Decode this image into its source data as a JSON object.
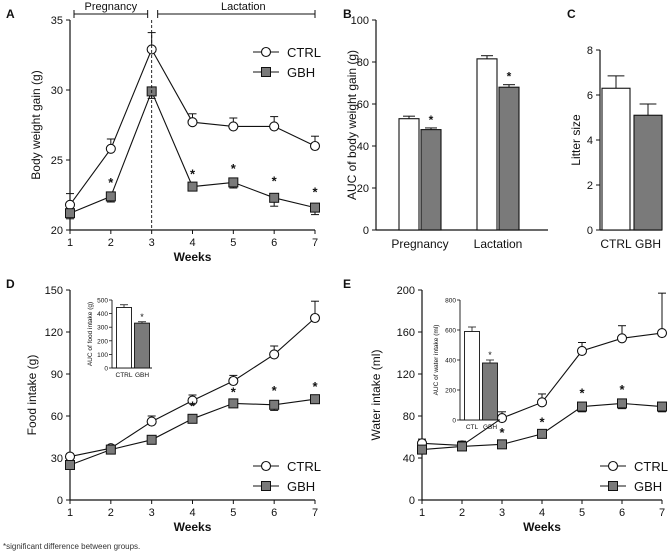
{
  "footnote": "*significant difference between groups.",
  "colors": {
    "ctrl_fill": "#ffffff",
    "gbh_fill": "#7a7a7a",
    "axis": "#111111"
  },
  "chart_data": [
    {
      "id": "A",
      "panel_label": "A",
      "type": "line",
      "ylabel": "Body weight gain (g)",
      "xlabel": "Weeks",
      "x": [
        1,
        2,
        3,
        4,
        5,
        6,
        7
      ],
      "ylim": [
        20,
        35
      ],
      "yticks": [
        20,
        25,
        30,
        35
      ],
      "phase_labels": [
        "Pregnancy",
        "Lactation"
      ],
      "legend": [
        "CTRL",
        "GBH"
      ],
      "series": [
        {
          "name": "CTRL",
          "marker": "circle",
          "values": [
            21.8,
            25.8,
            32.9,
            27.7,
            27.4,
            27.4,
            26.0
          ],
          "errors": [
            0.8,
            0.7,
            1.2,
            0.6,
            0.6,
            0.7,
            0.7
          ],
          "sig": [
            false,
            false,
            false,
            false,
            false,
            false,
            false
          ]
        },
        {
          "name": "GBH",
          "marker": "square",
          "values": [
            21.2,
            22.4,
            29.9,
            23.1,
            23.4,
            22.3,
            21.6
          ],
          "errors": [
            0.4,
            0.4,
            0.5,
            0.3,
            0.4,
            0.6,
            0.5
          ],
          "sig": [
            false,
            true,
            false,
            true,
            true,
            true,
            true
          ]
        }
      ]
    },
    {
      "id": "B",
      "panel_label": "B",
      "type": "bar",
      "ylabel": "AUC of body weight gain (g)",
      "categories": [
        "Pregnancy",
        "Lactation"
      ],
      "ylim": [
        0,
        100
      ],
      "yticks": [
        0,
        20,
        40,
        60,
        80,
        100
      ],
      "series": [
        {
          "name": "CTRL",
          "values": [
            53,
            81.5
          ],
          "errors": [
            1.2,
            1.5
          ],
          "sig": [
            false,
            false
          ]
        },
        {
          "name": "GBH",
          "values": [
            47.8,
            68
          ],
          "errors": [
            0.8,
            1.2
          ],
          "sig": [
            true,
            true
          ]
        }
      ]
    },
    {
      "id": "C",
      "panel_label": "C",
      "type": "bar",
      "ylabel": "Litter size",
      "categories": [
        "CTRL",
        "GBH"
      ],
      "ylim": [
        0,
        8
      ],
      "yticks": [
        0,
        2,
        4,
        6,
        8
      ],
      "values": [
        6.3,
        5.1
      ],
      "errors": [
        0.55,
        0.5
      ]
    },
    {
      "id": "D",
      "panel_label": "D",
      "type": "line",
      "ylabel": "Food intake (g)",
      "xlabel": "Weeks",
      "x": [
        1,
        2,
        3,
        4,
        5,
        6,
        7
      ],
      "ylim": [
        0,
        150
      ],
      "yticks": [
        0,
        30,
        60,
        90,
        120,
        150
      ],
      "legend": [
        "CTRL",
        "GBH"
      ],
      "series": [
        {
          "name": "CTRL",
          "marker": "circle",
          "values": [
            31,
            37,
            56,
            71,
            85,
            104,
            130
          ],
          "errors": [
            2,
            2,
            4,
            4,
            4,
            6,
            12
          ],
          "sig": [
            false,
            false,
            false,
            false,
            false,
            false,
            false
          ]
        },
        {
          "name": "GBH",
          "marker": "square",
          "values": [
            25,
            36,
            43,
            58,
            69,
            68,
            72
          ],
          "errors": [
            2,
            2,
            3,
            3,
            2,
            4,
            3
          ],
          "sig": [
            false,
            false,
            false,
            true,
            true,
            true,
            true
          ]
        }
      ],
      "inset": {
        "ylabel": "AUC of food intake (g)",
        "categories": [
          "CTRL",
          "GBH"
        ],
        "ylim": [
          0,
          500
        ],
        "yticks": [
          0,
          100,
          200,
          300,
          400,
          500
        ],
        "values": [
          445,
          330
        ],
        "errors": [
          20,
          10
        ],
        "sig": [
          false,
          true
        ]
      }
    },
    {
      "id": "E",
      "panel_label": "E",
      "type": "line",
      "ylabel": "Water intake (ml)",
      "xlabel": "Weeks",
      "x": [
        1,
        2,
        3,
        4,
        5,
        6,
        7
      ],
      "ylim": [
        0,
        200
      ],
      "yticks": [
        0,
        40,
        80,
        120,
        160,
        200
      ],
      "legend": [
        "CTRL",
        "GBH"
      ],
      "series": [
        {
          "name": "CTRL",
          "marker": "circle",
          "values": [
            54,
            52,
            78,
            93,
            142,
            154,
            159
          ],
          "errors": [
            4,
            4,
            6,
            8,
            8,
            12,
            38
          ],
          "sig": [
            false,
            false,
            false,
            false,
            false,
            false,
            false
          ]
        },
        {
          "name": "GBH",
          "marker": "square",
          "values": [
            48,
            51,
            53,
            63,
            89,
            92,
            89
          ],
          "errors": [
            4,
            3,
            3,
            3,
            5,
            5,
            5
          ],
          "sig": [
            false,
            false,
            true,
            true,
            true,
            true,
            false
          ]
        }
      ],
      "inset": {
        "ylabel": "AUC of water intake (ml)",
        "categories": [
          "CTL",
          "GBH"
        ],
        "ylim": [
          0,
          800
        ],
        "yticks": [
          0,
          200,
          400,
          600,
          800
        ],
        "values": [
          590,
          380
        ],
        "errors": [
          30,
          20
        ],
        "sig": [
          false,
          true
        ]
      }
    }
  ]
}
